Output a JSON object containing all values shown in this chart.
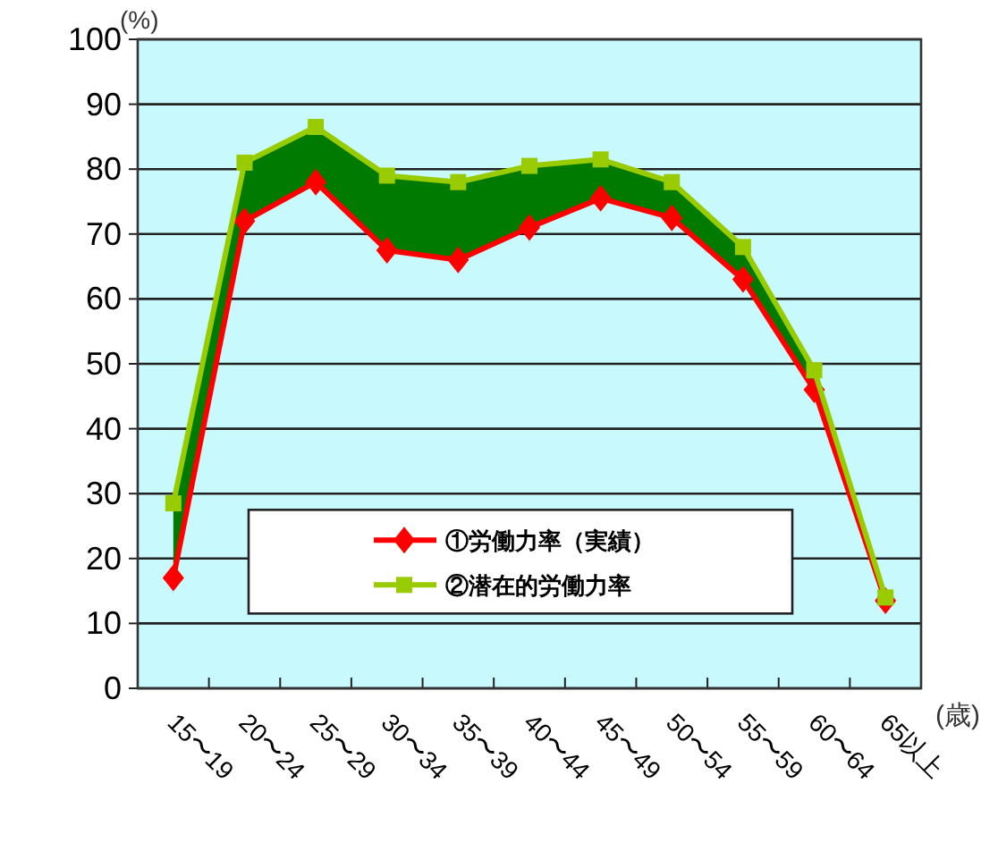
{
  "chart_data": {
    "type": "line",
    "ylabel": "(%)",
    "xlabel": "(歳)",
    "categories": [
      "15〜19",
      "20〜24",
      "25〜29",
      "30〜34",
      "35〜39",
      "40〜44",
      "45〜49",
      "50〜54",
      "55〜59",
      "60〜64",
      "65以上"
    ],
    "series": [
      {
        "name": "①労働力率（実績）",
        "color": "#ff0000",
        "marker": "diamond",
        "values": [
          17,
          72,
          78,
          67.5,
          66,
          71,
          75.5,
          72.5,
          63,
          46,
          13.5
        ]
      },
      {
        "name": "②潜在的労働力率",
        "color": "#99cc00",
        "marker": "square",
        "values": [
          28.5,
          81,
          86.5,
          79,
          78,
          80.5,
          81.5,
          78,
          68,
          49,
          14
        ],
        "lower": [
          17,
          72,
          78,
          67.5,
          66,
          71,
          75.5,
          72.5,
          63,
          46,
          13.5
        ],
        "upper": [
          28.5,
          81,
          86.5,
          79,
          78,
          80.5,
          81.5,
          78,
          68,
          49,
          14
        ]
      }
    ],
    "ylim": [
      0,
      100
    ],
    "yticks": [
      0,
      10,
      20,
      30,
      40,
      50,
      60,
      70,
      80,
      90,
      100
    ],
    "grid": "y",
    "legend": "bottom"
  }
}
